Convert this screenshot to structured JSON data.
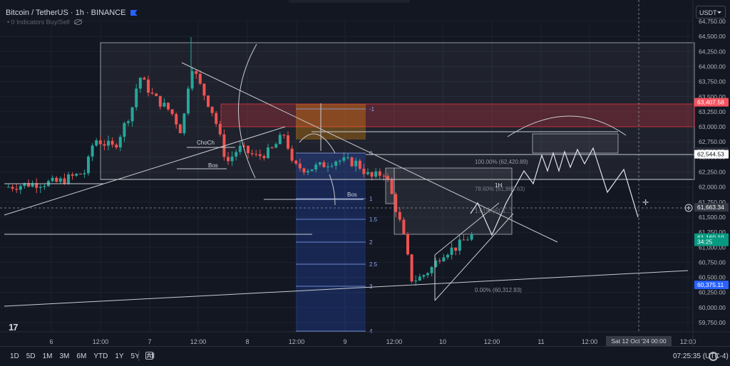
{
  "header": {
    "symbol": "Bitcoin / TetherUS · 1h · BINANCE",
    "indicator_text": "• 0 Indicators Buy/Sell"
  },
  "currency_button": "USDT",
  "price_axis": {
    "labels": [
      "64,750.00",
      "64,500.00",
      "64,250.00",
      "64,000.00",
      "63,750.00",
      "63,500.00",
      "63,250.00",
      "63,000.00",
      "62,750.00",
      "62,500.00",
      "62,250.00",
      "62,000.00",
      "61,750.00",
      "61,500.00",
      "61,250.00",
      "61,000.00",
      "60,750.00",
      "60,500.00",
      "60,250.00",
      "60,000.00",
      "59,750.00"
    ],
    "tags": [
      {
        "text": "63,407.58",
        "bg": "#f7525f",
        "fg": "#ffffff",
        "price": 63407.58
      },
      {
        "text": "62,586.55",
        "bg": "#2a2e39",
        "fg": "#d1d4dc",
        "price": 62586.55
      },
      {
        "text": "62,544.53",
        "bg": "#ffffff",
        "fg": "#131722",
        "price": 62544.53
      },
      {
        "text": "61,663.34",
        "bg": "#363a45",
        "fg": "#ffffff",
        "price": 61663.34
      },
      {
        "text": "61,160.10",
        "bg": "#089981",
        "fg": "#ffffff",
        "price": 61160.1
      },
      {
        "text": "34:25",
        "bg": "#089981",
        "fg": "#ffffff",
        "price": 61090
      },
      {
        "text": "60,375.11",
        "bg": "#2962ff",
        "fg": "#ffffff",
        "price": 60375.11
      }
    ]
  },
  "time_axis": {
    "labels": [
      "6",
      "12:00",
      "7",
      "12:00",
      "8",
      "12:00",
      "9",
      "12:00",
      "10",
      "12:00",
      "11",
      "12:00",
      "12:00"
    ],
    "cursor_label": "Sat 12 Oct '24   00:00"
  },
  "annotations": {
    "choch": "ChoCh",
    "bos1": "Bos",
    "bos2": "Bos",
    "fib_levels": [
      "-1",
      "0",
      "1",
      "1.5",
      "2",
      "2.5",
      "3",
      "4"
    ],
    "fib_100": "100.00% (62,420.89)",
    "fib_0": "0.00% (60,312.93)",
    "fib_786": "78.60% (61,969.63)",
    "fib_1618": "1.61% (61,1...)",
    "label_1h": "1H"
  },
  "bottom_toolbar": {
    "ranges": [
      "1D",
      "5D",
      "1M",
      "3M",
      "6M",
      "YTD",
      "1Y",
      "5Y",
      "All"
    ],
    "clock": "07:25:35 (UTC-4)"
  },
  "chart_data": {
    "type": "candlestick",
    "title": "Bitcoin / TetherUS · 1h · BINANCE",
    "ylim": [
      59600,
      64900
    ],
    "x_ticks": [
      "6",
      "12:00",
      "7",
      "12:00",
      "8",
      "12:00",
      "9",
      "12:00",
      "10",
      "12:00",
      "11",
      "12:00",
      "12:00"
    ],
    "last_price": 61160.1,
    "ohlc_count": 120
  },
  "colors": {
    "bg": "#131722",
    "up": "#26a69a",
    "down": "#ef5350",
    "grid": "#1e222d",
    "fib_blue": "#2962ff",
    "supply_zone": "#f23645",
    "orange_zone": "#ff9800"
  }
}
